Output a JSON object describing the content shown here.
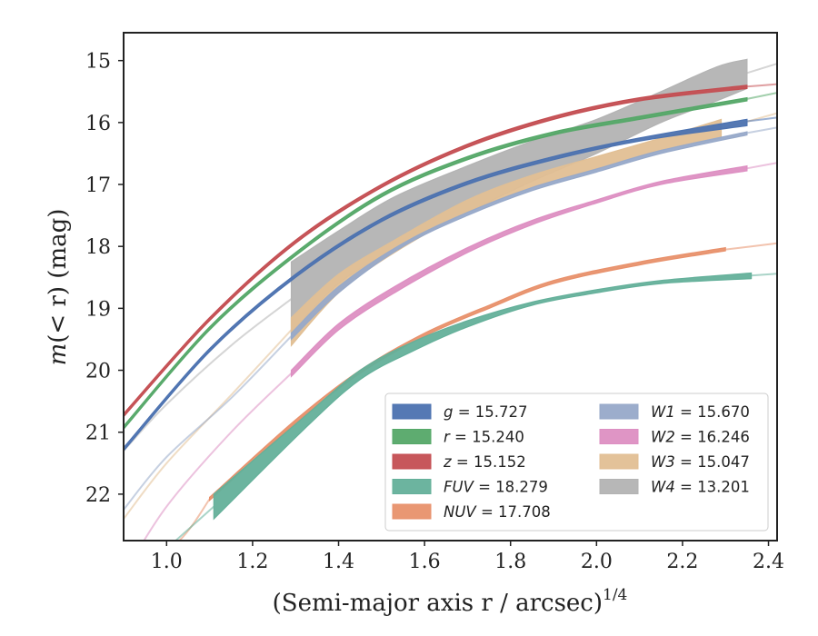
{
  "chart_data": {
    "type": "line",
    "xlabel": "(Semi-major axis r / arcsec)",
    "xlabel_exponent": "1/4",
    "ylabel_prefix": "m",
    "ylabel_arg": "(< r)",
    "ylabel_unit": " (mag)",
    "xlim": [
      0.9,
      2.42
    ],
    "ylim": [
      22.75,
      14.55
    ],
    "y_inverted": true,
    "x_ticks": [
      1.0,
      1.2,
      1.4,
      1.6,
      1.8,
      2.0,
      2.2,
      2.4
    ],
    "y_ticks": [
      15,
      16,
      17,
      18,
      19,
      20,
      21,
      22
    ],
    "legend_position": "lower-right",
    "series": [
      {
        "name": "g",
        "value_text": " = 15.727",
        "color": "#4c72b0",
        "kind": "band",
        "x": [
          0.9,
          1.1,
          1.3,
          1.5,
          1.7,
          1.9,
          2.1,
          2.35
        ],
        "y_low": [
          21.3,
          19.7,
          18.5,
          17.6,
          17.0,
          16.6,
          16.3,
          16.05
        ],
        "y_high": [
          21.25,
          19.65,
          18.45,
          17.55,
          16.95,
          16.55,
          16.25,
          15.95
        ],
        "ext_x": [
          2.35,
          2.42
        ],
        "ext_y": [
          15.98,
          15.92
        ]
      },
      {
        "name": "r",
        "value_text": " = 15.240",
        "color": "#55a868",
        "kind": "band",
        "x": [
          0.9,
          1.1,
          1.3,
          1.5,
          1.7,
          1.9,
          2.1,
          2.35
        ],
        "y_low": [
          20.95,
          19.35,
          18.15,
          17.2,
          16.6,
          16.2,
          15.95,
          15.65
        ],
        "y_high": [
          20.9,
          19.3,
          18.1,
          17.15,
          16.55,
          16.15,
          15.9,
          15.6
        ],
        "ext_x": [
          2.35,
          2.42
        ],
        "ext_y": [
          15.62,
          15.52
        ]
      },
      {
        "name": "z",
        "value_text": " = 15.152",
        "color": "#c44e52",
        "kind": "band",
        "x": [
          0.9,
          1.1,
          1.3,
          1.5,
          1.7,
          1.9,
          2.1,
          2.35
        ],
        "y_low": [
          20.75,
          19.2,
          17.95,
          17.05,
          16.4,
          15.95,
          15.65,
          15.45
        ],
        "y_high": [
          20.7,
          19.15,
          17.9,
          17.0,
          16.35,
          15.9,
          15.6,
          15.4
        ],
        "ext_x": [
          2.35,
          2.42
        ],
        "ext_y": [
          15.42,
          15.38
        ]
      },
      {
        "name": "FUV",
        "value_text": " = 18.279",
        "color": "#64b09a",
        "kind": "band",
        "x": [
          1.11,
          1.32,
          1.45,
          1.57,
          1.7,
          1.85,
          2.0,
          2.15,
          2.36
        ],
        "y_low": [
          22.4,
          20.95,
          20.15,
          19.7,
          19.3,
          18.95,
          18.75,
          18.6,
          18.52
        ],
        "y_high": [
          22.0,
          20.75,
          20.0,
          19.55,
          19.2,
          18.9,
          18.7,
          18.55,
          18.43
        ],
        "ext_x": [
          2.36,
          2.42
        ],
        "ext_y": [
          18.47,
          18.44
        ],
        "pre_x": [
          0.9,
          1.11
        ],
        "pre_y": [
          23.5,
          22.2
        ]
      },
      {
        "name": "NUV",
        "value_text": " = 17.708",
        "color": "#e8916c",
        "kind": "band",
        "x": [
          1.1,
          1.3,
          1.45,
          1.6,
          1.75,
          1.9,
          2.1,
          2.3
        ],
        "y_low": [
          22.1,
          20.85,
          20.05,
          19.45,
          19.0,
          18.6,
          18.3,
          18.07
        ],
        "y_high": [
          22.05,
          20.8,
          20.0,
          19.4,
          18.95,
          18.55,
          18.25,
          18.02
        ],
        "ext_x": [
          2.3,
          2.42
        ],
        "ext_y": [
          18.05,
          17.95
        ],
        "pre_x": [
          0.9,
          1.03,
          1.1
        ],
        "pre_y": [
          23.5,
          22.75,
          22.08
        ]
      },
      {
        "name": "W1",
        "value_text": " = 15.670",
        "color": "#97a9c9",
        "kind": "band",
        "x": [
          1.29,
          1.4,
          1.55,
          1.7,
          1.85,
          2.0,
          2.15,
          2.35
        ],
        "y_low": [
          19.5,
          18.75,
          18.0,
          17.5,
          17.1,
          16.8,
          16.5,
          16.2
        ],
        "y_high": [
          19.4,
          18.65,
          17.95,
          17.45,
          17.05,
          16.75,
          16.45,
          16.15
        ],
        "ext_x": [
          2.35,
          2.42
        ],
        "ext_y": [
          16.17,
          16.08
        ],
        "pre_x": [
          0.9,
          1.0,
          1.15,
          1.29
        ],
        "pre_y": [
          22.25,
          21.4,
          20.45,
          19.45
        ]
      },
      {
        "name": "W2",
        "value_text": " = 16.246",
        "color": "#dd8fc2",
        "kind": "band",
        "x": [
          1.29,
          1.4,
          1.53,
          1.7,
          1.85,
          2.0,
          2.15,
          2.35
        ],
        "y_low": [
          20.1,
          19.35,
          18.75,
          18.1,
          17.65,
          17.3,
          17.0,
          16.78
        ],
        "y_high": [
          20.0,
          19.25,
          18.65,
          18.02,
          17.58,
          17.25,
          16.95,
          16.7
        ],
        "ext_x": [
          2.35,
          2.42
        ],
        "ext_y": [
          16.74,
          16.65
        ],
        "pre_x": [
          0.9,
          1.0,
          1.15,
          1.29
        ],
        "pre_y": [
          23.3,
          22.2,
          21.0,
          20.05
        ]
      },
      {
        "name": "W3",
        "value_text": " = 15.047",
        "color": "#e1bf94",
        "kind": "band",
        "x": [
          1.29,
          1.4,
          1.53,
          1.7,
          1.85,
          2.0,
          2.15,
          2.29
        ],
        "y_low": [
          19.6,
          18.75,
          18.1,
          17.45,
          17.05,
          16.75,
          16.45,
          16.25
        ],
        "y_high": [
          19.15,
          18.45,
          17.9,
          17.25,
          16.85,
          16.55,
          16.25,
          15.95
        ],
        "ext_x": [
          2.29,
          2.42
        ],
        "ext_y": [
          16.1,
          15.85
        ],
        "pre_x": [
          0.9,
          1.0,
          1.15,
          1.29
        ],
        "pre_y": [
          22.4,
          21.5,
          20.4,
          19.35
        ]
      },
      {
        "name": "W4",
        "value_text": " = 13.201",
        "color": "#b3b3b3",
        "kind": "band",
        "x": [
          1.29,
          1.4,
          1.53,
          1.7,
          1.85,
          2.0,
          2.15,
          2.28,
          2.35
        ],
        "y_low": [
          19.4,
          18.6,
          18.05,
          17.45,
          16.95,
          16.5,
          16.0,
          15.65,
          15.45
        ],
        "y_high": [
          18.25,
          17.75,
          17.2,
          16.7,
          16.3,
          15.95,
          15.5,
          15.1,
          14.98
        ],
        "ext_x": [
          2.35,
          2.42
        ],
        "ext_y": [
          15.2,
          15.05
        ],
        "pre_x": [
          0.9,
          1.0,
          1.15,
          1.29
        ],
        "pre_y": [
          21.3,
          20.55,
          19.6,
          18.85
        ]
      }
    ],
    "legend_columns": [
      [
        "g",
        "r",
        "z",
        "FUV",
        "NUV"
      ],
      [
        "W1",
        "W2",
        "W3",
        "W4"
      ]
    ]
  }
}
